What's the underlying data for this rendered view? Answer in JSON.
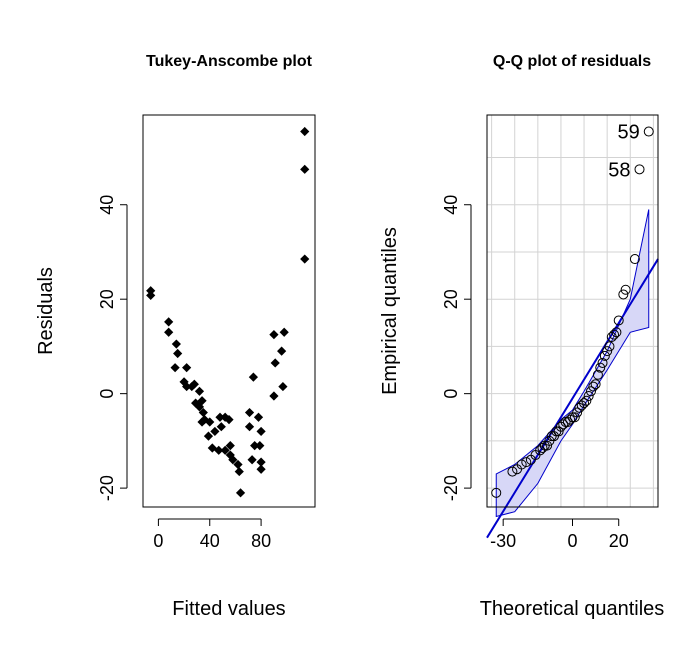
{
  "chart_data": [
    {
      "type": "scatter",
      "title": "Tukey-Anscombe plot",
      "xlabel": "Fitted values",
      "ylabel": "Residuals",
      "xlim": [
        -12,
        122
      ],
      "ylim": [
        -24,
        59
      ],
      "xticks": [
        0,
        40,
        80
      ],
      "xtick_labels": [
        "0",
        "40",
        "80"
      ],
      "yticks": [
        -20,
        0,
        20,
        40
      ],
      "ytick_labels": [
        "-20",
        "0",
        "20",
        "40"
      ],
      "grid": false,
      "marker": "filled diamond",
      "points": [
        [
          -6,
          21.8
        ],
        [
          -6,
          20.8
        ],
        [
          8,
          15.2
        ],
        [
          8,
          13
        ],
        [
          14,
          10.5
        ],
        [
          15,
          8.5
        ],
        [
          13,
          5.5
        ],
        [
          22,
          5.5
        ],
        [
          20,
          2.5
        ],
        [
          22,
          1.5
        ],
        [
          26,
          1.5
        ],
        [
          28,
          2
        ],
        [
          29,
          -2
        ],
        [
          32,
          0.5
        ],
        [
          32,
          -2.8
        ],
        [
          34,
          -1.5
        ],
        [
          35,
          -4
        ],
        [
          36,
          -5.5
        ],
        [
          34,
          -6
        ],
        [
          40,
          -6
        ],
        [
          39,
          -9
        ],
        [
          44,
          -8
        ],
        [
          48,
          -5
        ],
        [
          49,
          -7
        ],
        [
          52,
          -5
        ],
        [
          55,
          -5.5
        ],
        [
          42,
          -11.5
        ],
        [
          47,
          -12
        ],
        [
          52,
          -12
        ],
        [
          56,
          -11
        ],
        [
          56,
          -13
        ],
        [
          58,
          -14
        ],
        [
          62,
          -15
        ],
        [
          63,
          -16.5
        ],
        [
          64,
          -21
        ],
        [
          74,
          3.5
        ],
        [
          71,
          -4
        ],
        [
          78,
          -5
        ],
        [
          71,
          -7
        ],
        [
          80,
          -8
        ],
        [
          75,
          -11
        ],
        [
          79,
          -11
        ],
        [
          73,
          -14
        ],
        [
          80,
          -16
        ],
        [
          80,
          -14.5
        ],
        [
          90,
          12.5
        ],
        [
          98,
          13
        ],
        [
          96,
          9
        ],
        [
          91,
          6.5
        ],
        [
          97,
          1.5
        ],
        [
          90,
          -0.5
        ],
        [
          114,
          55.5
        ],
        [
          114,
          47.5
        ],
        [
          114,
          28.5
        ]
      ]
    },
    {
      "type": "scatter",
      "title": "Q-Q plot of residuals",
      "xlabel": "Theoretical quantiles",
      "ylabel": "Empirical quantiles",
      "xlim": [
        -37,
        37
      ],
      "ylim": [
        -24,
        59
      ],
      "xticks": [
        -30,
        0,
        20
      ],
      "xtick_labels": [
        "-30",
        "0",
        "20"
      ],
      "yticks": [
        -20,
        0,
        20,
        40
      ],
      "ytick_labels": [
        "-20",
        "0",
        "20",
        "40"
      ],
      "grid": true,
      "marker": "open circle",
      "colors": {
        "line": "#0000cc",
        "band_fill": "#d7d7f7",
        "band_stroke": "#0000cc"
      },
      "reference_line": {
        "x": [
          -37,
          37
        ],
        "y": [
          -30.5,
          28.5
        ]
      },
      "confidence_band": {
        "x": [
          -33,
          -25,
          -15,
          -5,
          0,
          5,
          15,
          25,
          33
        ],
        "upper": [
          -17,
          -15,
          -11,
          -5.5,
          -3.5,
          0.5,
          9,
          20,
          39
        ],
        "lower": [
          -26,
          -25,
          -19,
          -10,
          -6.5,
          -2.5,
          5,
          13,
          14
        ]
      },
      "points": [
        [
          -33,
          -21
        ],
        [
          -26,
          -16.5
        ],
        [
          -24,
          -16
        ],
        [
          -22,
          -15
        ],
        [
          -20,
          -14.5
        ],
        [
          -18,
          -14
        ],
        [
          -16,
          -13
        ],
        [
          -14,
          -12
        ],
        [
          -13,
          -11.5
        ],
        [
          -12,
          -11
        ],
        [
          -11,
          -11
        ],
        [
          -10,
          -10
        ],
        [
          -9,
          -9
        ],
        [
          -8,
          -9
        ],
        [
          -7,
          -8
        ],
        [
          -6,
          -8
        ],
        [
          -5,
          -7
        ],
        [
          -4,
          -6.5
        ],
        [
          -3,
          -6
        ],
        [
          -2,
          -6
        ],
        [
          -1,
          -5.5
        ],
        [
          0,
          -5
        ],
        [
          1,
          -5
        ],
        [
          2,
          -4
        ],
        [
          3,
          -3
        ],
        [
          4,
          -2.5
        ],
        [
          5,
          -2
        ],
        [
          6,
          -1.5
        ],
        [
          7,
          -0.5
        ],
        [
          8,
          0.5
        ],
        [
          9,
          1.5
        ],
        [
          10,
          2
        ],
        [
          11,
          4
        ],
        [
          12,
          5.5
        ],
        [
          13,
          6.5
        ],
        [
          14,
          8
        ],
        [
          15,
          9
        ],
        [
          16,
          10
        ],
        [
          17,
          12
        ],
        [
          18,
          12.5
        ],
        [
          19,
          13
        ],
        [
          20,
          15.5
        ],
        [
          22,
          21
        ],
        [
          23,
          22
        ],
        [
          27,
          28.5
        ],
        [
          29,
          47.5
        ],
        [
          33,
          55.5
        ]
      ],
      "labels": [
        {
          "text": "59",
          "x": 33,
          "y": 55.5
        },
        {
          "text": "58",
          "x": 29,
          "y": 47.5
        }
      ]
    }
  ]
}
